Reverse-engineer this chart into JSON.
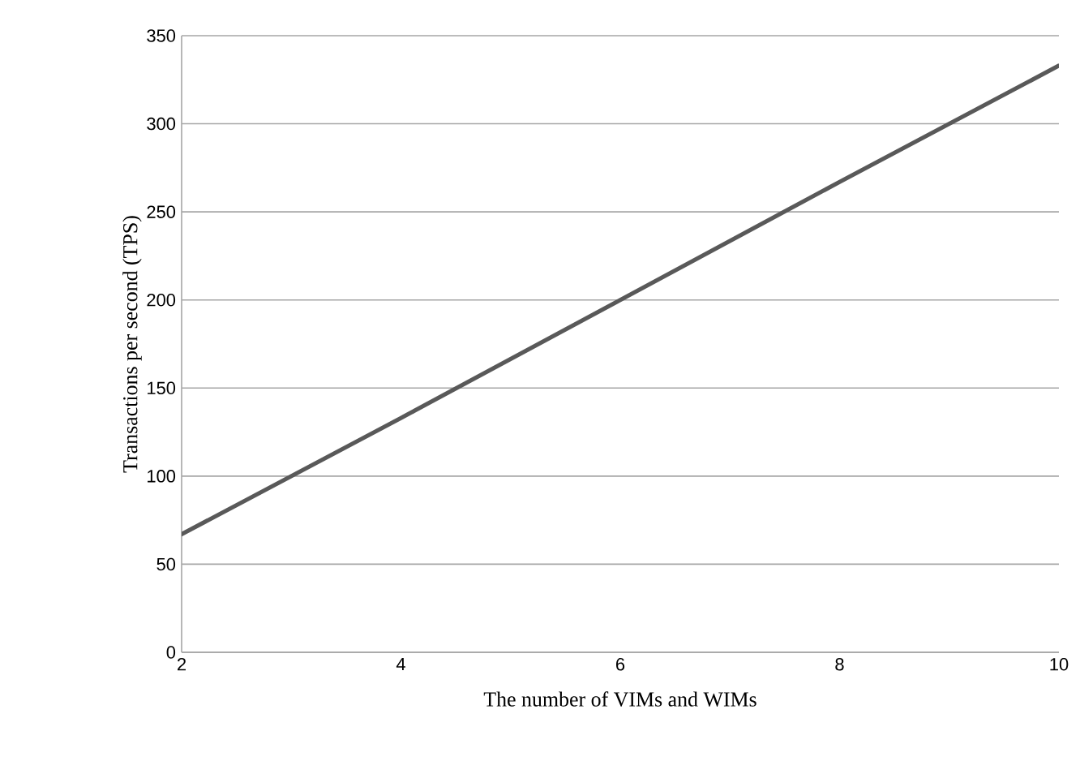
{
  "chart_data": {
    "type": "line",
    "xlabel": "The number of VIMs and WIMs",
    "ylabel": "Transactions per second (TPS)",
    "x": [
      2,
      4,
      6,
      8,
      10
    ],
    "series": [
      {
        "color": "#595959",
        "values": [
          67,
          133,
          200,
          267,
          333
        ]
      }
    ],
    "xlim": [
      2,
      10
    ],
    "xticks": [
      2,
      4,
      6,
      8,
      10
    ],
    "ylim": [
      0,
      350
    ],
    "yticks": [
      0,
      50,
      100,
      150,
      200,
      250,
      300,
      350
    ],
    "grid": "y",
    "marker": "none",
    "line_style": "solid"
  }
}
